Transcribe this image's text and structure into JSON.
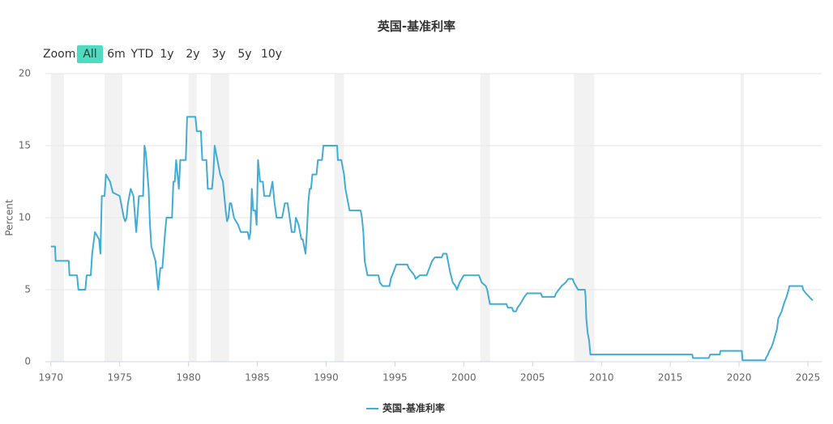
{
  "chart_data": {
    "type": "line",
    "title": "英国-基准利率",
    "zoom_label": "Zoom",
    "range_buttons": [
      "All",
      "6m",
      "YTD",
      "1y",
      "2y",
      "3y",
      "5y",
      "10y"
    ],
    "selected_button": 0,
    "ylabel": "Percent",
    "xlim": [
      1969.6,
      2026
    ],
    "ylim": [
      0,
      20
    ],
    "xticks": [
      1970,
      1975,
      1980,
      1985,
      1990,
      1995,
      2000,
      2005,
      2010,
      2015,
      2020,
      2025
    ],
    "yticks": [
      0,
      5,
      10,
      15,
      20
    ],
    "grid": true,
    "legend": "bottom",
    "bands": [
      [
        1970,
        1970.95
      ],
      [
        1973.9,
        1975.2
      ],
      [
        1980,
        1980.6
      ],
      [
        1981.6,
        1982.95
      ],
      [
        1990.6,
        1991.3
      ],
      [
        2001.2,
        2001.9
      ],
      [
        2008,
        2009.5
      ],
      [
        2020.1,
        2020.35
      ]
    ],
    "band_color": "#f2f2f2",
    "x": [
      1970.0,
      1970.3,
      1970.35,
      1971.3,
      1971.35,
      1971.9,
      1972.0,
      1972.5,
      1972.6,
      1972.9,
      1973.0,
      1973.2,
      1973.5,
      1973.6,
      1973.7,
      1973.9,
      1974.0,
      1974.3,
      1974.5,
      1975.0,
      1975.3,
      1975.4,
      1975.5,
      1975.6,
      1975.8,
      1976.0,
      1976.2,
      1976.4,
      1976.7,
      1976.8,
      1976.9,
      1977.1,
      1977.2,
      1977.3,
      1977.6,
      1977.8,
      1977.95,
      1978.1,
      1978.3,
      1978.4,
      1978.8,
      1978.9,
      1979.0,
      1979.1,
      1979.3,
      1979.4,
      1979.8,
      1979.9,
      1980.5,
      1980.6,
      1980.9,
      1981.0,
      1981.3,
      1981.4,
      1981.7,
      1981.8,
      1981.9,
      1982.0,
      1982.3,
      1982.5,
      1982.7,
      1982.8,
      1982.9,
      1983.0,
      1983.1,
      1983.3,
      1983.6,
      1983.8,
      1984.3,
      1984.4,
      1984.5,
      1984.6,
      1984.7,
      1984.85,
      1984.95,
      1985.05,
      1985.2,
      1985.4,
      1985.5,
      1985.9,
      1986.1,
      1986.25,
      1986.4,
      1986.8,
      1987.0,
      1987.2,
      1987.35,
      1987.5,
      1987.7,
      1987.8,
      1988.0,
      1988.2,
      1988.3,
      1988.5,
      1988.6,
      1988.7,
      1988.8,
      1988.9,
      1989.0,
      1989.3,
      1989.4,
      1989.7,
      1989.8,
      1990.8,
      1990.85,
      1991.1,
      1991.3,
      1991.4,
      1991.5,
      1991.6,
      1991.7,
      1992.5,
      1992.6,
      1992.7,
      1992.8,
      1993.0,
      1993.8,
      1993.9,
      1994.1,
      1994.6,
      1994.7,
      1994.9,
      1995.1,
      1995.9,
      1996.0,
      1996.2,
      1996.4,
      1996.5,
      1996.8,
      1997.3,
      1997.5,
      1997.7,
      1997.9,
      1998.4,
      1998.5,
      1998.75,
      1998.85,
      1999.0,
      1999.2,
      1999.4,
      1999.5,
      1999.7,
      2000.0,
      2001.1,
      2001.3,
      2001.6,
      2001.7,
      2001.8,
      2001.9,
      2003.1,
      2003.2,
      2003.5,
      2003.6,
      2003.8,
      2003.9,
      2004.1,
      2004.4,
      2004.6,
      2005.6,
      2005.7,
      2006.6,
      2006.7,
      2006.9,
      2007.1,
      2007.4,
      2007.6,
      2007.9,
      2008.0,
      2008.3,
      2008.8,
      2008.85,
      2008.9,
      2009.0,
      2009.1,
      2009.2,
      2016.6,
      2016.65,
      2017.8,
      2017.9,
      2018.6,
      2018.65,
      2020.2,
      2020.25,
      2021.9,
      2021.95,
      2022.1,
      2022.2,
      2022.35,
      2022.45,
      2022.6,
      2022.75,
      2022.85,
      2023.1,
      2023.25,
      2023.45,
      2023.6,
      2023.65,
      2024.6,
      2024.65,
      2024.85,
      2025.1,
      2025.35
    ],
    "series": [
      {
        "name": "英国-基准利率",
        "color": "#41acd6",
        "values": [
          8,
          8,
          7,
          7,
          6,
          6,
          5,
          5,
          6,
          6,
          7.5,
          9,
          8.5,
          7.5,
          11.5,
          11.5,
          13,
          12.5,
          11.75,
          11.5,
          10,
          9.75,
          10,
          11,
          12,
          11.5,
          9,
          11.5,
          11.5,
          15,
          14.5,
          12,
          9.5,
          8,
          7,
          5,
          6.5,
          6.5,
          9,
          10,
          10,
          12.5,
          12.5,
          14,
          12,
          14,
          14,
          17,
          17,
          16,
          16,
          14,
          14,
          12,
          12,
          13,
          15,
          14.5,
          13,
          12.5,
          10.5,
          9.75,
          10,
          11,
          11,
          10,
          9.5,
          9,
          9,
          8.5,
          9,
          12,
          10.5,
          10.5,
          9.5,
          14,
          12.5,
          12.5,
          11.5,
          11.5,
          12.5,
          11,
          10,
          10,
          11,
          11,
          10,
          9,
          9,
          10,
          9.5,
          8.5,
          8.5,
          7.5,
          9,
          11,
          12,
          12,
          13,
          13,
          14,
          14,
          15,
          15,
          14,
          14,
          13,
          12,
          11.5,
          11,
          10.5,
          10.5,
          10,
          9,
          7,
          6,
          6,
          5.5,
          5.25,
          5.25,
          5.75,
          6.25,
          6.75,
          6.75,
          6.5,
          6.25,
          6,
          5.75,
          6,
          6,
          6.5,
          7,
          7.25,
          7.25,
          7.5,
          7.5,
          7,
          6.25,
          5.5,
          5.25,
          5,
          5.5,
          6,
          6,
          5.5,
          5.25,
          5,
          4.5,
          4,
          4,
          3.75,
          3.75,
          3.5,
          3.5,
          3.75,
          4,
          4.5,
          4.75,
          4.75,
          4.5,
          4.5,
          4.75,
          5,
          5.25,
          5.5,
          5.75,
          5.75,
          5.5,
          5,
          5,
          4.5,
          3,
          2,
          1.5,
          0.5,
          0.5,
          0.25,
          0.25,
          0.5,
          0.5,
          0.75,
          0.75,
          0.1,
          0.1,
          0.25,
          0.5,
          0.75,
          1,
          1.25,
          1.75,
          2.25,
          3,
          3.5,
          4,
          4.5,
          5,
          5.25,
          5.25,
          5,
          4.75,
          4.5,
          4.25
        ]
      }
    ]
  }
}
